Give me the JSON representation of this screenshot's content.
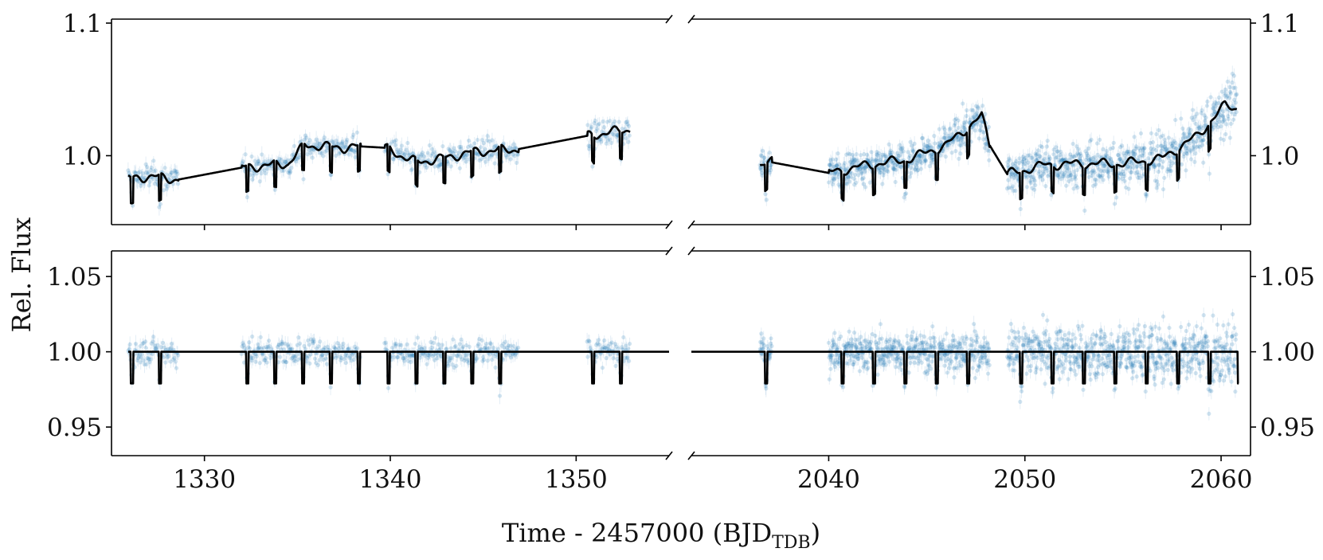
{
  "colors": {
    "data": "#1f77b4",
    "model": "#000000"
  },
  "chart_data": {
    "type": "scatter",
    "layout": "2x2 broken-axis light-curve panels",
    "xlabel_main": "Time - 2457000 (BJD",
    "xlabel_sub": "TDB",
    "xlabel_close": ")",
    "ylabel": "Rel. Flux",
    "x_segments": [
      {
        "name": "left",
        "xlim": [
          1325.0,
          1355.0
        ],
        "ticks": [
          1330,
          1340,
          1350
        ],
        "tick_labels": [
          "1330",
          "1340",
          "1350"
        ]
      },
      {
        "name": "right",
        "xlim": [
          2033.0,
          2061.5
        ],
        "ticks": [
          2040,
          2050,
          2060
        ],
        "tick_labels": [
          "2040",
          "2050",
          "2060"
        ]
      }
    ],
    "panels": [
      {
        "name": "raw",
        "ylim": [
          0.948,
          1.103
        ],
        "yticks": [
          1.0,
          1.1
        ],
        "ytick_labels": [
          "1.0",
          "1.1"
        ],
        "data_chunks": {
          "left": [
            [
              1325.9,
              1328.6
            ],
            [
              1332.0,
              1338.4
            ],
            [
              1339.7,
              1346.9
            ],
            [
              1350.6,
              1352.9
            ]
          ],
          "right": [
            [
              2036.5,
              2037.1
            ],
            [
              2040.0,
              2048.2
            ],
            [
              2049.1,
              2060.8
            ]
          ]
        },
        "transit_times": {
          "left": [
            1326.1,
            1327.6,
            1332.3,
            1333.8,
            1335.3,
            1336.8,
            1338.3,
            1339.9,
            1341.4,
            1342.9,
            1344.4,
            1345.9,
            1350.9,
            1352.4
          ],
          "right": [
            2036.8,
            2040.7,
            2042.3,
            2043.9,
            2045.5,
            2047.1,
            2049.8,
            2051.4,
            2053.0,
            2054.6,
            2056.2,
            2057.8,
            2059.4,
            2060.9
          ]
        },
        "transit_depth": 0.02,
        "trend_knots": {
          "left": [
            [
              1325.9,
              0.983
            ],
            [
              1326.8,
              0.984
            ],
            [
              1327.4,
              0.984
            ],
            [
              1328.6,
              0.982
            ],
            [
              1332.0,
              0.991
            ],
            [
              1334.5,
              0.994
            ],
            [
              1335.4,
              1.008
            ],
            [
              1337.5,
              1.006
            ],
            [
              1338.4,
              1.007
            ],
            [
              1339.7,
              1.006
            ],
            [
              1341.4,
              0.995
            ],
            [
              1342.8,
              0.998
            ],
            [
              1344.5,
              1.003
            ],
            [
              1346.9,
              1.005
            ],
            [
              1350.6,
              1.015
            ],
            [
              1352.9,
              1.02
            ]
          ],
          "right": [
            [
              2036.5,
              0.993
            ],
            [
              2037.1,
              0.995
            ],
            [
              2040.0,
              0.987
            ],
            [
              2042.0,
              0.993
            ],
            [
              2044.0,
              0.997
            ],
            [
              2046.0,
              1.008
            ],
            [
              2047.8,
              1.03
            ],
            [
              2048.2,
              1.008
            ],
            [
              2049.1,
              0.986
            ],
            [
              2051.0,
              0.993
            ],
            [
              2053.0,
              0.994
            ],
            [
              2055.0,
              0.994
            ],
            [
              2057.0,
              0.998
            ],
            [
              2058.8,
              1.015
            ],
            [
              2060.2,
              1.038
            ],
            [
              2060.8,
              1.036
            ]
          ]
        }
      },
      {
        "name": "detrended",
        "ylim": [
          0.931,
          1.067
        ],
        "yticks": [
          0.95,
          1.0,
          1.05
        ],
        "ytick_labels": [
          "0.95",
          "1.00",
          "1.05"
        ],
        "data_chunks": {
          "left": [
            [
              1325.9,
              1328.6
            ],
            [
              1332.0,
              1338.4
            ],
            [
              1339.7,
              1346.9
            ],
            [
              1350.6,
              1352.9
            ]
          ],
          "right": [
            [
              2036.5,
              2037.1
            ],
            [
              2040.0,
              2048.2
            ],
            [
              2049.1,
              2060.8
            ]
          ]
        },
        "transit_times": {
          "left": [
            1326.1,
            1327.6,
            1332.3,
            1333.8,
            1335.3,
            1336.8,
            1338.3,
            1339.9,
            1341.4,
            1342.9,
            1344.4,
            1345.9,
            1350.9,
            1352.4
          ],
          "right": [
            2036.8,
            2040.7,
            2042.3,
            2043.9,
            2045.5,
            2047.1,
            2049.8,
            2051.4,
            2053.0,
            2054.6,
            2056.2,
            2057.8,
            2059.4,
            2060.9
          ]
        },
        "transit_depth": 0.021,
        "model_baseline": 1.0,
        "model_span": {
          "left": [
            1325.9,
            1355.0
          ],
          "right": [
            2033.0,
            2060.9
          ]
        }
      }
    ],
    "scatter_sigma": {
      "left": 0.008,
      "right": 0.011
    }
  }
}
